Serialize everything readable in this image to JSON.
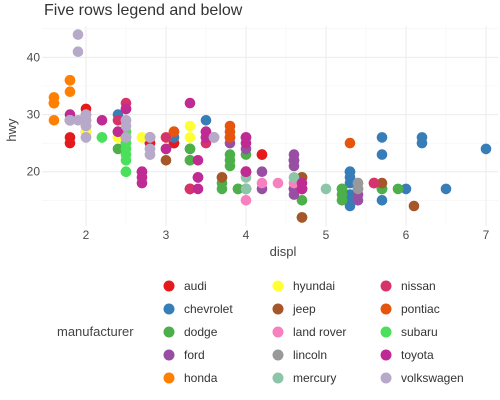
{
  "chart_data": {
    "type": "scatter",
    "title": "Five rows legend and below",
    "xlabel": "displ",
    "ylabel": "hwy",
    "xlim": [
      1.45,
      7.15
    ],
    "ylim": [
      10.5,
      45.5
    ],
    "x_ticks": [
      2,
      3,
      4,
      5,
      6,
      7
    ],
    "y_ticks": [
      20,
      30,
      40
    ],
    "grid": true,
    "legend": {
      "title": "manufacturer",
      "placement": "bottom",
      "rows": 5,
      "entries": [
        {
          "name": "audi",
          "color": "#E41A1C"
        },
        {
          "name": "chevrolet",
          "color": "#377EB8"
        },
        {
          "name": "dodge",
          "color": "#4DAF4A"
        },
        {
          "name": "ford",
          "color": "#984EA3"
        },
        {
          "name": "honda",
          "color": "#FF7F00"
        },
        {
          "name": "hyundai",
          "color": "#FFFF33"
        },
        {
          "name": "jeep",
          "color": "#A65628"
        },
        {
          "name": "land rover",
          "color": "#F781BF"
        },
        {
          "name": "lincoln",
          "color": "#999999"
        },
        {
          "name": "mercury",
          "color": "#8DC5A8"
        },
        {
          "name": "nissan",
          "color": "#D6336C"
        },
        {
          "name": "pontiac",
          "color": "#E6550D"
        },
        {
          "name": "subaru",
          "color": "#4BE05B"
        },
        {
          "name": "toyota",
          "color": "#BF2A93"
        },
        {
          "name": "volkswagen",
          "color": "#B7A9C9"
        }
      ]
    },
    "series": [
      {
        "name": "audi",
        "points": [
          [
            1.8,
            29
          ],
          [
            1.8,
            29
          ],
          [
            2.0,
            31
          ],
          [
            2.0,
            30
          ],
          [
            2.8,
            26
          ],
          [
            2.8,
            26
          ],
          [
            3.1,
            27
          ],
          [
            1.8,
            26
          ],
          [
            1.8,
            25
          ],
          [
            2.0,
            28
          ],
          [
            2.0,
            27
          ],
          [
            2.8,
            25
          ],
          [
            2.8,
            25
          ],
          [
            3.1,
            25
          ],
          [
            3.1,
            25
          ],
          [
            4.2,
            23
          ],
          [
            4.2,
            23
          ]
        ]
      },
      {
        "name": "chevrolet",
        "points": [
          [
            5.3,
            20
          ],
          [
            5.3,
            15
          ],
          [
            5.3,
            20
          ],
          [
            5.7,
            17
          ],
          [
            6.0,
            17
          ],
          [
            5.7,
            26
          ],
          [
            5.7,
            23
          ],
          [
            6.2,
            26
          ],
          [
            6.2,
            25
          ],
          [
            7.0,
            24
          ],
          [
            5.3,
            19
          ],
          [
            5.3,
            14
          ],
          [
            5.7,
            15
          ],
          [
            6.5,
            17
          ],
          [
            2.4,
            27
          ],
          [
            2.4,
            30
          ],
          [
            3.1,
            26
          ],
          [
            3.5,
            29
          ],
          [
            3.6,
            26
          ],
          [
            5.3,
            16
          ],
          [
            5.3,
            18
          ]
        ]
      },
      {
        "name": "dodge",
        "points": [
          [
            2.4,
            24
          ],
          [
            3.0,
            24
          ],
          [
            3.3,
            22
          ],
          [
            3.3,
            22
          ],
          [
            3.3,
            24
          ],
          [
            3.3,
            24
          ],
          [
            3.3,
            17
          ],
          [
            3.8,
            22
          ],
          [
            3.8,
            21
          ],
          [
            3.8,
            23
          ],
          [
            4.0,
            23
          ],
          [
            3.7,
            19
          ],
          [
            3.7,
            18
          ],
          [
            3.9,
            17
          ],
          [
            3.9,
            17
          ],
          [
            4.7,
            19
          ],
          [
            4.7,
            19
          ],
          [
            5.2,
            17
          ],
          [
            5.2,
            17
          ],
          [
            4.7,
            17
          ],
          [
            5.2,
            15
          ],
          [
            5.7,
            17
          ],
          [
            5.9,
            17
          ],
          [
            4.7,
            12
          ],
          [
            4.7,
            15
          ],
          [
            5.2,
            16
          ],
          [
            5.7,
            17
          ],
          [
            3.7,
            17
          ]
        ]
      },
      {
        "name": "ford",
        "points": [
          [
            4.2,
            17
          ],
          [
            4.6,
            17
          ],
          [
            4.6,
            16
          ],
          [
            4.6,
            17
          ],
          [
            5.4,
            15
          ],
          [
            5.4,
            17
          ],
          [
            4.0,
            20
          ],
          [
            4.0,
            17
          ],
          [
            4.0,
            20
          ],
          [
            4.0,
            17
          ],
          [
            4.6,
            17
          ],
          [
            4.6,
            22
          ],
          [
            5.4,
            16
          ],
          [
            3.8,
            26
          ],
          [
            3.8,
            25
          ],
          [
            4.0,
            26
          ],
          [
            4.0,
            24
          ],
          [
            4.6,
            21
          ],
          [
            4.6,
            22
          ],
          [
            4.6,
            23
          ],
          [
            4.2,
            20
          ],
          [
            4.6,
            22
          ],
          [
            4.6,
            22
          ]
        ]
      },
      {
        "name": "honda",
        "points": [
          [
            1.6,
            33
          ],
          [
            1.6,
            32
          ],
          [
            1.6,
            32
          ],
          [
            1.6,
            29
          ],
          [
            1.6,
            32
          ],
          [
            1.8,
            34
          ],
          [
            1.8,
            36
          ],
          [
            1.8,
            36
          ],
          [
            2.0,
            29
          ]
        ]
      },
      {
        "name": "hyundai",
        "points": [
          [
            2.4,
            26
          ],
          [
            2.4,
            27
          ],
          [
            2.5,
            27
          ],
          [
            2.5,
            28
          ],
          [
            3.3,
            26
          ],
          [
            2.0,
            27
          ],
          [
            2.0,
            28
          ],
          [
            2.4,
            26
          ],
          [
            2.4,
            26
          ],
          [
            2.7,
            26
          ],
          [
            3.0,
            26
          ],
          [
            3.3,
            28
          ]
        ]
      },
      {
        "name": "jeep",
        "points": [
          [
            3.0,
            22
          ],
          [
            3.7,
            19
          ],
          [
            4.0,
            20
          ],
          [
            4.7,
            17
          ],
          [
            4.7,
            12
          ],
          [
            4.7,
            19
          ],
          [
            5.7,
            18
          ],
          [
            6.1,
            14
          ]
        ]
      },
      {
        "name": "land rover",
        "points": [
          [
            4.0,
            15
          ],
          [
            4.2,
            18
          ],
          [
            4.4,
            18
          ],
          [
            4.6,
            18
          ]
        ]
      },
      {
        "name": "lincoln",
        "points": [
          [
            5.4,
            18
          ],
          [
            5.4,
            17
          ],
          [
            5.4,
            18
          ]
        ]
      },
      {
        "name": "mercury",
        "points": [
          [
            4.0,
            19
          ],
          [
            4.0,
            17
          ],
          [
            4.6,
            19
          ],
          [
            5.0,
            17
          ]
        ]
      },
      {
        "name": "nissan",
        "points": [
          [
            2.4,
            29
          ],
          [
            2.4,
            27
          ],
          [
            2.5,
            31
          ],
          [
            2.5,
            32
          ],
          [
            3.5,
            27
          ],
          [
            3.5,
            26
          ],
          [
            3.0,
            26
          ],
          [
            3.5,
            25
          ],
          [
            3.3,
            17
          ],
          [
            3.3,
            17
          ],
          [
            4.0,
            20
          ],
          [
            5.6,
            18
          ],
          [
            5.6,
            18
          ]
        ]
      },
      {
        "name": "pontiac",
        "points": [
          [
            3.1,
            27
          ],
          [
            3.8,
            27
          ],
          [
            3.8,
            28
          ],
          [
            3.8,
            26
          ],
          [
            5.3,
            25
          ]
        ]
      },
      {
        "name": "subaru",
        "points": [
          [
            2.5,
            23
          ],
          [
            2.5,
            24
          ],
          [
            2.5,
            26
          ],
          [
            2.5,
            25
          ],
          [
            2.5,
            25
          ],
          [
            2.5,
            26
          ],
          [
            2.5,
            27
          ],
          [
            2.5,
            25
          ],
          [
            2.5,
            27
          ],
          [
            2.5,
            20
          ],
          [
            2.5,
            20
          ],
          [
            2.5,
            22
          ],
          [
            2.2,
            26
          ],
          [
            2.2,
            26
          ]
        ]
      },
      {
        "name": "toyota",
        "points": [
          [
            2.7,
            20
          ],
          [
            2.7,
            20
          ],
          [
            3.4,
            19
          ],
          [
            3.4,
            17
          ],
          [
            4.0,
            20
          ],
          [
            4.7,
            17
          ],
          [
            2.7,
            18
          ],
          [
            2.7,
            19
          ],
          [
            3.4,
            19
          ],
          [
            4.0,
            20
          ],
          [
            4.7,
            17
          ],
          [
            1.8,
            30
          ],
          [
            1.8,
            29
          ],
          [
            2.2,
            29
          ],
          [
            2.4,
            27
          ],
          [
            2.5,
            31
          ],
          [
            3.3,
            32
          ],
          [
            3.5,
            27
          ],
          [
            3.5,
            26
          ],
          [
            4.0,
            26
          ],
          [
            4.0,
            25
          ],
          [
            3.0,
            24
          ],
          [
            3.4,
            22
          ],
          [
            4.7,
            18
          ]
        ]
      },
      {
        "name": "volkswagen",
        "points": [
          [
            2.0,
            26
          ],
          [
            2.0,
            29
          ],
          [
            2.5,
            28
          ],
          [
            2.5,
            29
          ],
          [
            2.8,
            24
          ],
          [
            2.8,
            26
          ],
          [
            2.8,
            23
          ],
          [
            1.9,
            44
          ],
          [
            1.9,
            41
          ],
          [
            1.9,
            29
          ],
          [
            2.0,
            29
          ],
          [
            2.0,
            28
          ],
          [
            2.5,
            29
          ],
          [
            1.8,
            29
          ],
          [
            1.8,
            29
          ],
          [
            2.0,
            29
          ],
          [
            2.0,
            26
          ],
          [
            2.8,
            26
          ],
          [
            2.8,
            24
          ],
          [
            2.5,
            26
          ],
          [
            2.8,
            23
          ],
          [
            3.6,
            26
          ],
          [
            3.6,
            26
          ],
          [
            1.8,
            29
          ],
          [
            2.0,
            29
          ],
          [
            2.0,
            30
          ]
        ]
      }
    ]
  }
}
